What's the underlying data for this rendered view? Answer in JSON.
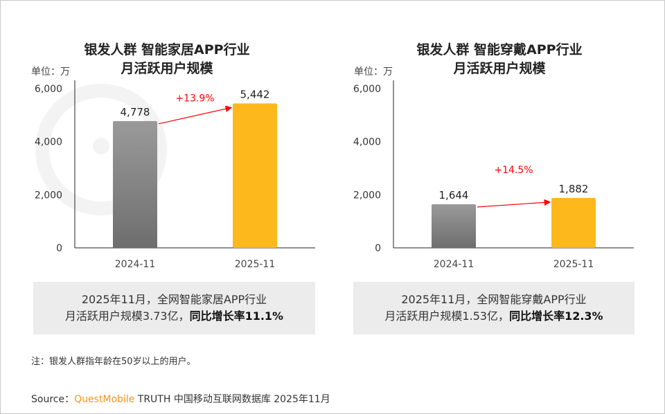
{
  "chart_data": [
    {
      "type": "bar",
      "title": "银发人群 智能家居APP行业\n月活跃用户规模",
      "unit_label": "单位：万",
      "categories": [
        "2024-11",
        "2025-11"
      ],
      "values": [
        4778,
        5442
      ],
      "value_labels": [
        "4,778",
        "5,442"
      ],
      "ylim": [
        0,
        6000
      ],
      "yticks": [
        "0",
        "2,000",
        "4,000",
        "6,000"
      ],
      "growth_label": "+13.9%",
      "colors": [
        "#808080",
        "#fdb91c"
      ]
    },
    {
      "type": "bar",
      "title": "银发人群 智能穿戴APP行业\n月活跃用户规模",
      "unit_label": "单位：万",
      "categories": [
        "2024-11",
        "2025-11"
      ],
      "values": [
        1644,
        1882
      ],
      "value_labels": [
        "1,644",
        "1,882"
      ],
      "ylim": [
        0,
        6000
      ],
      "yticks": [
        "0",
        "2,000",
        "4,000",
        "6,000"
      ],
      "growth_label": "+14.5%",
      "colors": [
        "#808080",
        "#fdb91c"
      ]
    }
  ],
  "left": {
    "title1": "银发人群 智能家居APP行业",
    "title2": "月活跃用户规模",
    "unit": "单位：万",
    "summary1": "2025年11月，全网智能家居APP行业",
    "summary2a": "月活跃用户规模3.73亿，",
    "summary2b": "同比增长率11.1%"
  },
  "right": {
    "title1": "银发人群 智能穿戴APP行业",
    "title2": "月活跃用户规模",
    "unit": "单位：万",
    "summary1": "2025年11月，全网智能穿戴APP行业",
    "summary2a": "月活跃用户规模1.53亿，",
    "summary2b": "同比增长率12.3%"
  },
  "note": "注：银发人群指年龄在50岁以上的用户。",
  "source": {
    "prefix": "Source：",
    "brand": "QuestMobile",
    "rest": " TRUTH 中国移动互联网数据库 2025年11月"
  },
  "watermark": "QUESTMOBILE"
}
